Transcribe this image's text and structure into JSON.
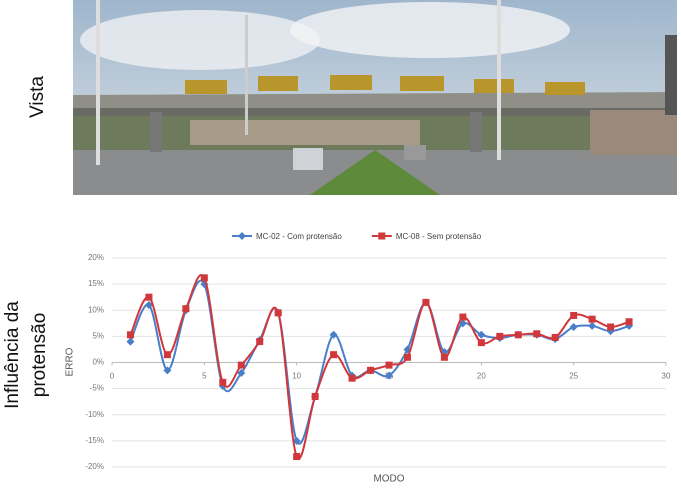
{
  "panel_labels": {
    "top": "Vista",
    "bottom": [
      "Influência da",
      "protensão"
    ]
  },
  "chart_data": {
    "type": "line",
    "x": [
      1,
      2,
      3,
      4,
      5,
      6,
      7,
      8,
      9,
      10,
      11,
      12,
      13,
      14,
      15,
      16,
      17,
      18,
      19,
      20,
      21,
      22,
      23,
      24,
      25,
      26,
      27,
      28
    ],
    "series": [
      {
        "name": "MC-02 - Com protensão",
        "color": "#4a7ec9",
        "marker": "diamond",
        "values": [
          4,
          11,
          -1.5,
          10,
          15,
          -4.5,
          -2,
          4.3,
          9.5,
          -15,
          -6.5,
          5.3,
          -2.5,
          -1.5,
          -2.5,
          2.5,
          11.5,
          2,
          7.5,
          5.3,
          4.7,
          5.3,
          5.3,
          4.5,
          6.8,
          7,
          6,
          7
        ]
      },
      {
        "name": "MC-08 - Sem protensão",
        "color": "#d0383c",
        "marker": "square",
        "values": [
          5.3,
          12.5,
          1.5,
          10.3,
          16.2,
          -3.8,
          -0.5,
          4,
          9.5,
          -18,
          -6.5,
          1.5,
          -3,
          -1.5,
          -0.5,
          1,
          11.5,
          1,
          8.7,
          3.8,
          5,
          5.3,
          5.5,
          4.8,
          9,
          8.3,
          6.8,
          7.8
        ]
      }
    ],
    "xlim": [
      0,
      30
    ],
    "xticks": [
      0,
      5,
      10,
      15,
      20,
      25,
      30
    ],
    "ylim": [
      -20,
      20
    ],
    "yticks": [
      {
        "value": -20,
        "label": "-20%"
      },
      {
        "value": -15,
        "label": "-15%"
      },
      {
        "value": -10,
        "label": "-10%"
      },
      {
        "value": -5,
        "label": "-5%"
      },
      {
        "value": 0,
        "label": "0%"
      },
      {
        "value": 5,
        "label": "5%"
      },
      {
        "value": 10,
        "label": "10%"
      },
      {
        "value": 15,
        "label": "15%"
      },
      {
        "value": 20,
        "label": "20%"
      }
    ],
    "xlabel": "MODO",
    "ylabel": "ERRO",
    "grid": true,
    "legend": "top",
    "smooth": true
  }
}
